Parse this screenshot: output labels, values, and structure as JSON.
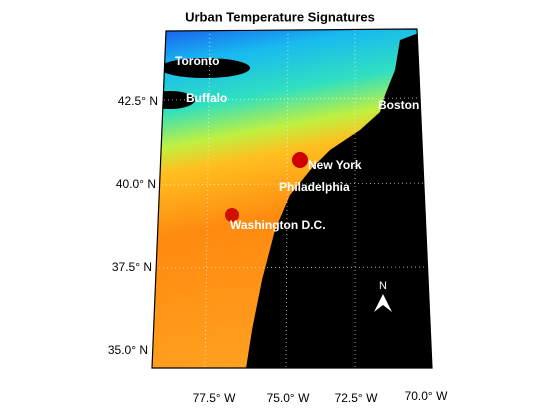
{
  "title": "Urban Temperature Signatures",
  "latitude_labels": [
    "42.5° N",
    "40.0° N",
    "37.5° N",
    "35.0° N"
  ],
  "longitude_labels": [
    "77.5° W",
    "75.0° W",
    "72.5° W",
    "70.0° W"
  ],
  "cities": [
    "Toronto",
    "Buffalo",
    "Boston",
    "New York",
    "Philadelphia",
    "Washington D.C."
  ],
  "north_arrow": "N"
}
